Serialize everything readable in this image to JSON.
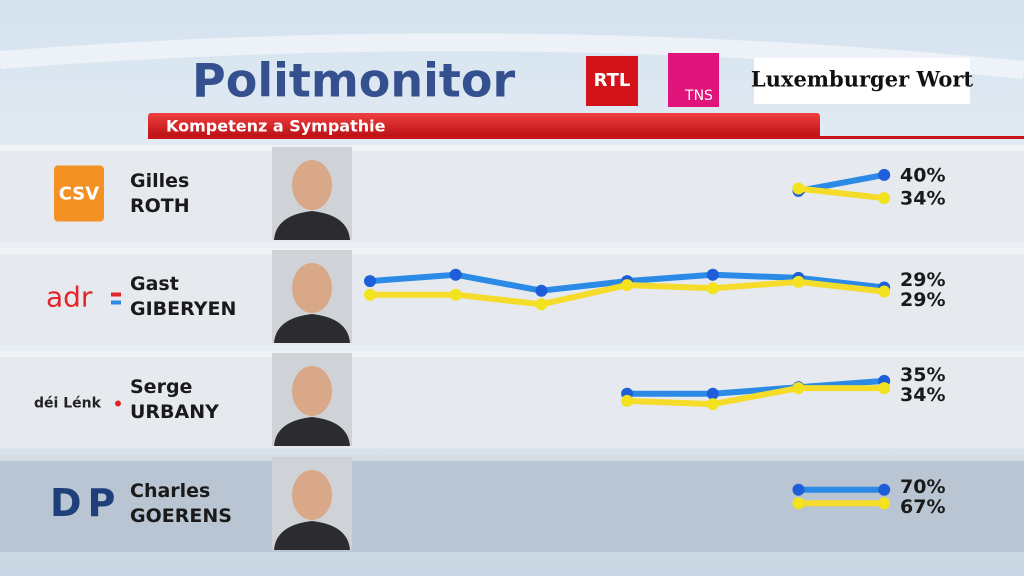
{
  "header": {
    "title": "Politmonitor",
    "subtitle": "Kompetenz a Sympathie",
    "logos": [
      "RTL",
      "TNS",
      "Luxemburger Wort"
    ]
  },
  "rows": [
    {
      "party": "CSV",
      "first_name": "Gilles",
      "last_name": "ROTH",
      "chart_data": {
        "type": "line",
        "categories": [
          null,
          null,
          null,
          null,
          null,
          null,
          null
        ],
        "series": [
          {
            "color": "#2a8ae6",
            "values": [
              null,
              null,
              null,
              null,
              null,
              35,
              40
            ],
            "value_labels": [
              null,
              null,
              null,
              null,
              null,
              null,
              "40%"
            ]
          },
          {
            "color": "#f5dc2a",
            "values": [
              null,
              null,
              null,
              null,
              null,
              37,
              34
            ],
            "value_labels": [
              null,
              null,
              null,
              null,
              null,
              null,
              "34%"
            ]
          }
        ]
      }
    },
    {
      "party": "adr",
      "first_name": "Gast",
      "last_name": "GIBERYEN",
      "chart_data": {
        "type": "line",
        "categories": [
          null,
          null,
          null,
          null,
          null,
          null,
          null
        ],
        "series": [
          {
            "color": "#2a8ae6",
            "values": [
              31,
              33,
              28,
              31,
              33,
              32,
              29
            ],
            "value_labels": [
              null,
              null,
              null,
              null,
              null,
              null,
              "29%"
            ]
          },
          {
            "color": "#f5dc2a",
            "values": [
              28,
              28,
              25,
              31,
              30,
              32,
              29
            ],
            "value_labels": [
              null,
              null,
              null,
              null,
              null,
              null,
              "29%"
            ]
          }
        ]
      }
    },
    {
      "party": "déi Lénk",
      "first_name": "Serge",
      "last_name": "URBANY",
      "chart_data": {
        "type": "line",
        "categories": [
          null,
          null,
          null,
          null,
          null,
          null,
          null
        ],
        "series": [
          {
            "color": "#2a8ae6",
            "values": [
              null,
              null,
              null,
              31,
              31,
              33,
              35
            ],
            "value_labels": [
              null,
              null,
              null,
              null,
              null,
              null,
              "35%"
            ]
          },
          {
            "color": "#f5dc2a",
            "values": [
              null,
              null,
              null,
              30,
              29,
              34,
              34
            ],
            "value_labels": [
              null,
              null,
              null,
              null,
              null,
              null,
              "34%"
            ]
          }
        ]
      }
    },
    {
      "party": "DP",
      "first_name": "Charles",
      "last_name": "GOERENS",
      "chart_data": {
        "type": "line",
        "categories": [
          null,
          null,
          null,
          null,
          null,
          null,
          null
        ],
        "series": [
          {
            "color": "#2a8ae6",
            "values": [
              null,
              null,
              null,
              null,
              null,
              70,
              70
            ],
            "value_labels": [
              null,
              null,
              null,
              null,
              null,
              null,
              "70%"
            ]
          },
          {
            "color": "#f5dc2a",
            "values": [
              null,
              null,
              null,
              null,
              null,
              67,
              67
            ],
            "value_labels": [
              null,
              null,
              null,
              null,
              null,
              null,
              "67%"
            ]
          }
        ]
      }
    }
  ]
}
